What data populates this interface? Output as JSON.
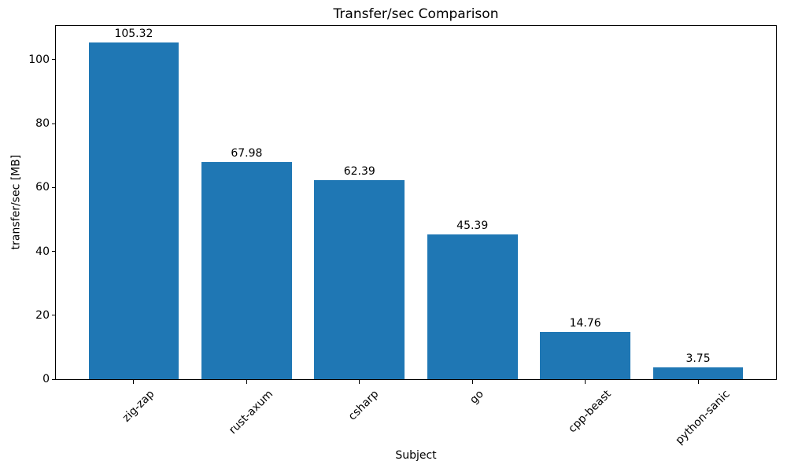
{
  "chart_data": {
    "type": "bar",
    "title": "Transfer/sec Comparison",
    "xlabel": "Subject",
    "ylabel": "transfer/sec [MB]",
    "categories": [
      "zig-zap",
      "rust-axum",
      "csharp",
      "go",
      "cpp-beast",
      "python-sanic"
    ],
    "values": [
      105.32,
      67.98,
      62.39,
      45.39,
      14.76,
      3.75
    ],
    "bar_labels": [
      "105.32",
      "67.98",
      "62.39",
      "45.39",
      "14.76",
      "3.75"
    ],
    "yticks": [
      0,
      20,
      40,
      60,
      80,
      100
    ],
    "ylim": [
      0,
      110.59
    ],
    "grid": false,
    "legend_position": "none",
    "bar_color": "#1f77b4",
    "axis_color": "#000000",
    "text_color": "#000000",
    "background_color": "#ffffff"
  }
}
